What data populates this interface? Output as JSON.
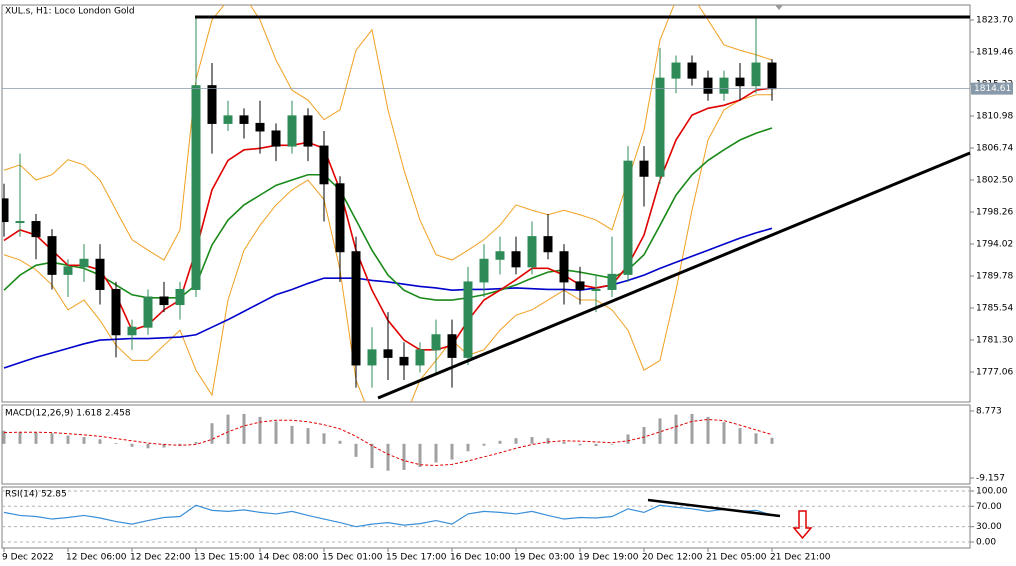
{
  "chart_data": [
    {
      "type": "candlestick",
      "title": "XUL.s, H1: Loco London Gold",
      "categories": [
        "9 Dec 2022",
        null,
        null,
        null,
        "12 Dec 06:00",
        null,
        null,
        null,
        "12 Dec 22:00",
        null,
        null,
        null,
        "13 Dec 15:00",
        null,
        null,
        null,
        "14 Dec 08:00",
        null,
        null,
        null,
        "15 Dec 01:00",
        null,
        null,
        null,
        "15 Dec 17:00",
        null,
        null,
        null,
        "16 Dec 10:00",
        null,
        null,
        null,
        "19 Dec 03:00",
        null,
        null,
        null,
        "19 Dec 19:00",
        null,
        null,
        null,
        "20 Dec 12:00",
        null,
        null,
        null,
        "21 Dec 05:00",
        null,
        null,
        null,
        "21 Dec 21:00"
      ],
      "open": [
        1800,
        1797,
        1797,
        1795,
        1790,
        1791,
        1792,
        1788,
        1782,
        1783,
        1787,
        1786,
        1788,
        1815,
        1810,
        1811,
        1810,
        1809,
        1807,
        1811,
        1807,
        1802,
        1793,
        1778,
        1780,
        1779,
        1778,
        1780,
        1782,
        1779,
        1789,
        1792,
        1793,
        1791,
        1795,
        1793,
        1789,
        1788,
        1788,
        1790,
        1805,
        1803,
        1816,
        1818,
        1816,
        1814,
        1816,
        1815,
        1818
      ],
      "high": [
        1802,
        1806,
        1798,
        1796,
        1792,
        1794,
        1794,
        1789,
        1784,
        1788,
        1789,
        1789,
        1824,
        1818,
        1813,
        1812,
        1813,
        1810,
        1813,
        1812,
        1809,
        1803,
        1795,
        1783,
        1785,
        1781,
        1781,
        1784,
        1784,
        1791,
        1794,
        1795,
        1795,
        1797,
        1798,
        1794,
        1791,
        1790,
        1795,
        1807,
        1807,
        1820,
        1819,
        1819,
        1817,
        1817,
        1818,
        1824,
        1818.5
      ],
      "low": [
        1795,
        1795,
        1792,
        1788,
        1787,
        1789,
        1786,
        1779,
        1780,
        1782,
        1785,
        1784,
        1787,
        1806,
        1809,
        1808,
        1806,
        1805,
        1806,
        1805,
        1797,
        1789,
        1775,
        1775,
        1776,
        1776,
        1777,
        1777,
        1775,
        1778,
        1787,
        1790,
        1790,
        1790,
        1792,
        1786,
        1786,
        1785,
        1787,
        1789,
        1799,
        1802,
        1814,
        1815,
        1813,
        1813,
        1813,
        1814,
        1813
      ],
      "close": [
        1797,
        1797,
        1795,
        1790,
        1791,
        1792,
        1788,
        1782,
        1783,
        1787,
        1786,
        1788,
        1815,
        1810,
        1811,
        1810,
        1809,
        1807,
        1811,
        1807,
        1802,
        1793,
        1778,
        1780,
        1779,
        1778,
        1780,
        1782,
        1779,
        1789,
        1792,
        1793,
        1791,
        1795,
        1793,
        1789,
        1788,
        1788,
        1790,
        1805,
        1803,
        1816,
        1818,
        1816,
        1814,
        1816,
        1815,
        1818,
        1814.61
      ],
      "up_color": "#2e8b57",
      "down_color": "#000000",
      "overlays": [
        {
          "color": "#f0a020",
          "values": [
            1803.8,
            1804.5,
            1802.5,
            1803.2,
            1805.2,
            1804.5,
            1802.5,
            1798.5,
            1794.6,
            1793.2,
            1791.9,
            1795.9,
            1815.8,
            1823.7,
            1826.35,
            1827.0,
            1823.7,
            1818.4,
            1814.4,
            1813.1,
            1810.5,
            1811.8,
            1819.7,
            1822.4,
            1811.8,
            1803.8,
            1797.2,
            1792.6,
            1791.9,
            1793.2,
            1794.6,
            1796.5,
            1799.2,
            1798.5,
            1797.9,
            1798.5,
            1797.9,
            1797.2,
            1795.9,
            1802.5,
            1809.1,
            1821.05,
            1826.35,
            1827.0,
            1823.7,
            1820.4,
            1819.7,
            1819.1,
            1818.4
          ]
        },
        {
          "color": "#f0a020",
          "values": [
            1792.6,
            1791.9,
            1790.6,
            1788.6,
            1785.3,
            1786.6,
            1783.9,
            1780.6,
            1778.6,
            1778.6,
            1780.6,
            1782.6,
            1777.3,
            1774.0,
            1786.6,
            1793.2,
            1796.5,
            1799.2,
            1801.2,
            1802.5,
            1799.9,
            1790.6,
            1776.0,
            1770.7,
            1768.0,
            1770.7,
            1776.0,
            1778.6,
            1781.3,
            1779.3,
            1780.0,
            1782.6,
            1784.6,
            1785.3,
            1786.6,
            1787.9,
            1786.6,
            1786.6,
            1785.3,
            1782.6,
            1777.3,
            1778.6,
            1787.9,
            1798.5,
            1807.8,
            1811.8,
            1813.1,
            1813.8,
            1813.8
          ]
        },
        {
          "color": "#0000cc",
          "values": [
            1777.6,
            1778.3,
            1779.0,
            1779.6,
            1780.2,
            1780.8,
            1781.3,
            1781.4,
            1781.5,
            1781.5,
            1781.6,
            1781.7,
            1782.0,
            1783.0,
            1784.0,
            1785.1,
            1786.2,
            1787.3,
            1788.0,
            1788.8,
            1789.5,
            1789.5,
            1789.5,
            1789.2,
            1789.0,
            1788.7,
            1788.4,
            1788.2,
            1787.9,
            1788.0,
            1788.0,
            1788.1,
            1788.2,
            1788.1,
            1788.0,
            1788.0,
            1787.9,
            1788.2,
            1788.6,
            1789.2,
            1789.9,
            1790.8,
            1791.6,
            1792.4,
            1793.2,
            1794.0,
            1794.8,
            1795.5,
            1796.1
          ]
        },
        {
          "color": "#1a8a1a",
          "values": [
            1787.9,
            1789.9,
            1791.2,
            1791.6,
            1791.2,
            1790.8,
            1789.9,
            1788.6,
            1787.3,
            1786.9,
            1786.9,
            1786.9,
            1788.6,
            1793.9,
            1797.2,
            1799.2,
            1800.5,
            1801.8,
            1802.5,
            1803.2,
            1803.2,
            1801.2,
            1797.2,
            1793.2,
            1789.9,
            1787.9,
            1786.9,
            1786.6,
            1786.6,
            1786.9,
            1787.3,
            1787.9,
            1788.6,
            1789.5,
            1790.3,
            1790.6,
            1790.3,
            1789.9,
            1789.5,
            1790.6,
            1792.6,
            1796.5,
            1800.5,
            1803.2,
            1805.1,
            1806.5,
            1807.8,
            1808.7,
            1809.4
          ]
        },
        {
          "color": "#e00000",
          "values": [
            1794.5,
            1795.9,
            1795.2,
            1793.2,
            1791.2,
            1791.2,
            1790.6,
            1787.3,
            1782.6,
            1783.3,
            1785.3,
            1786.6,
            1793.2,
            1801.2,
            1805.1,
            1806.5,
            1806.7,
            1807.1,
            1807.1,
            1807.5,
            1806.7,
            1801.2,
            1793.2,
            1787.9,
            1783.9,
            1781.3,
            1780.0,
            1780.0,
            1780.6,
            1783.9,
            1786.6,
            1787.9,
            1789.3,
            1790.8,
            1790.8,
            1789.9,
            1788.6,
            1788.2,
            1788.6,
            1791.2,
            1795.2,
            1802.5,
            1807.8,
            1811.1,
            1812.0,
            1812.4,
            1813.1,
            1814.4,
            1814.7
          ]
        }
      ],
      "ylim": [
        1773.09,
        1825.69
      ],
      "yticks": [
        {
          "value": 1823.7,
          "label": "1823.70"
        },
        1819.46,
        1815.22,
        1810.98,
        1806.74,
        {
          "value": 1802.5,
          "label": "1802.50"
        },
        1798.26,
        1794.02,
        1789.78,
        1785.54,
        {
          "value": 1781.3,
          "label": "1781.30"
        },
        1777.06
      ],
      "last_price": 1814.61
    },
    {
      "type": "macd",
      "title": "MACD(12,26,9) 1.618 2.458",
      "histogram": {
        "color": "#a0a0a0",
        "values": [
          3.5,
          3.2,
          3.0,
          2.8,
          2.2,
          1.8,
          1.2,
          0.2,
          -0.8,
          -1.2,
          -1.0,
          -0.5,
          0.5,
          5.5,
          7.8,
          8.0,
          7.2,
          6.0,
          4.8,
          4.2,
          2.8,
          0.8,
          -3.5,
          -6.5,
          -7.2,
          -7.0,
          -6.2,
          -5.0,
          -4.2,
          -2.0,
          -0.5,
          0.8,
          1.5,
          1.8,
          1.5,
          0.5,
          -0.4,
          -0.6,
          -0.2,
          2.5,
          4.5,
          6.8,
          7.8,
          8.0,
          7.2,
          5.8,
          4.2,
          2.8,
          1.618
        ]
      },
      "signal": {
        "color": "#e00000",
        "values": [
          3.0,
          3.1,
          3.1,
          3.0,
          2.7,
          2.4,
          2.0,
          1.4,
          0.8,
          0.2,
          -0.2,
          -0.4,
          -0.2,
          1.2,
          3.2,
          4.8,
          5.8,
          6.3,
          6.3,
          5.9,
          5.1,
          4.0,
          2.0,
          -0.5,
          -2.8,
          -4.5,
          -5.6,
          -5.8,
          -5.5,
          -4.6,
          -3.5,
          -2.4,
          -1.2,
          -0.2,
          0.5,
          0.8,
          0.7,
          0.5,
          0.3,
          0.8,
          1.8,
          3.2,
          4.6,
          6.0,
          6.5,
          6.2,
          5.0,
          3.7,
          2.458
        ]
      },
      "ylim": [
        -10.76,
        10.38
      ],
      "yticks": [
        -9.157,
        8.773
      ]
    },
    {
      "type": "line",
      "title": "RSI(14) 52.85",
      "color": "#3a8fd8",
      "values": [
        58,
        52,
        50,
        45,
        48,
        52,
        47,
        40,
        35,
        42,
        48,
        50,
        72,
        62,
        60,
        63,
        58,
        55,
        60,
        52,
        45,
        38,
        30,
        35,
        38,
        33,
        36,
        42,
        35,
        55,
        60,
        58,
        55,
        60,
        52,
        45,
        48,
        47,
        50,
        65,
        58,
        72,
        68,
        65,
        60,
        64,
        60,
        62,
        52.85
      ],
      "ylim": [
        -11.8,
        107.8
      ],
      "yticks": [
        {
          "value": 100,
          "label": "100.00"
        },
        {
          "value": 70,
          "label": "70.00"
        },
        {
          "value": 30,
          "label": "30.00"
        },
        {
          "value": 0,
          "label": "0.00"
        }
      ]
    }
  ]
}
